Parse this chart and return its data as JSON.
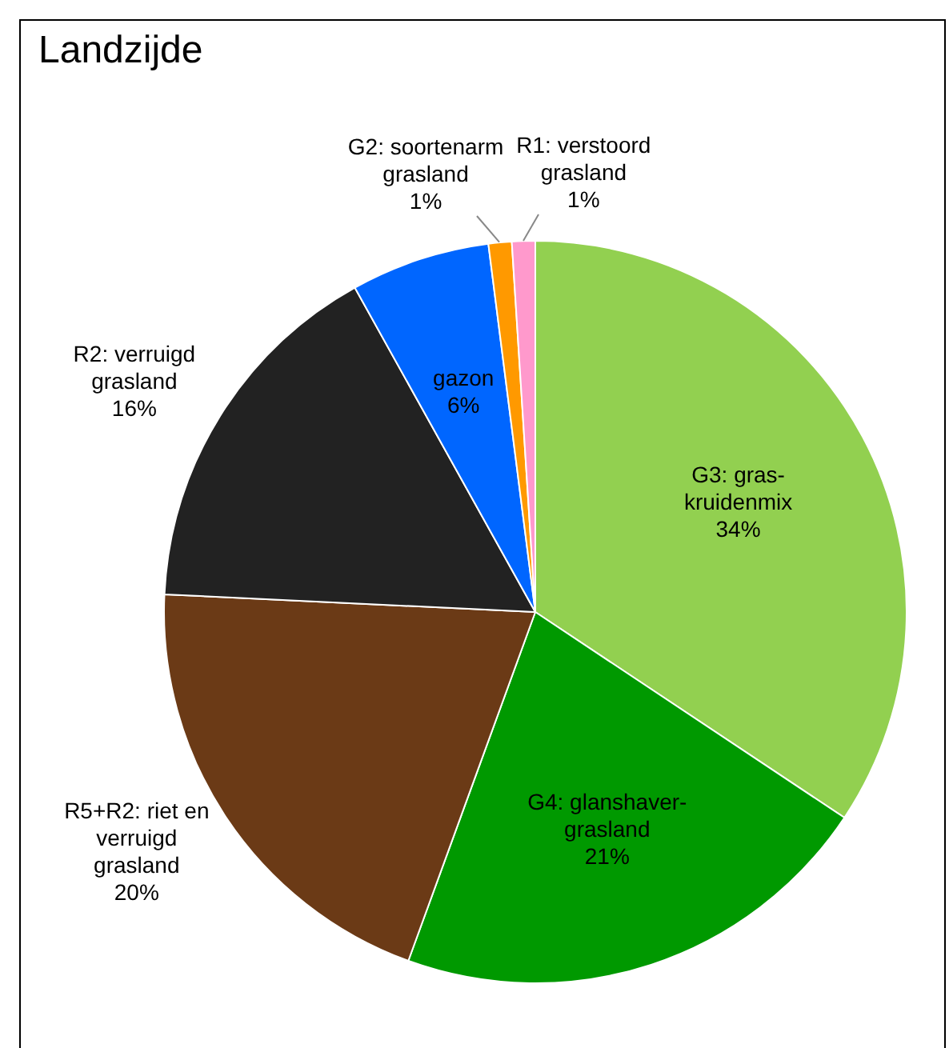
{
  "chart_data": {
    "type": "pie",
    "title": "Landzijde",
    "categories": [
      "G3: gras-kruidenmix",
      "G4: glanshaver-grasland",
      "R5+R2: riet en verruigd grasland",
      "R2: verruigd grasland",
      "gazon",
      "G2: soortenarm grasland",
      "R1: verstoord grasland"
    ],
    "values": [
      34,
      21,
      20,
      16,
      6,
      1,
      1
    ],
    "colors": [
      "#92d050",
      "#009900",
      "#6b3a16",
      "#222222",
      "#0066ff",
      "#ff9900",
      "#ff99cc"
    ],
    "value_labels": [
      "34%",
      "21%",
      "20%",
      "16%",
      "6%",
      "1%",
      "1%"
    ],
    "legend": false
  }
}
